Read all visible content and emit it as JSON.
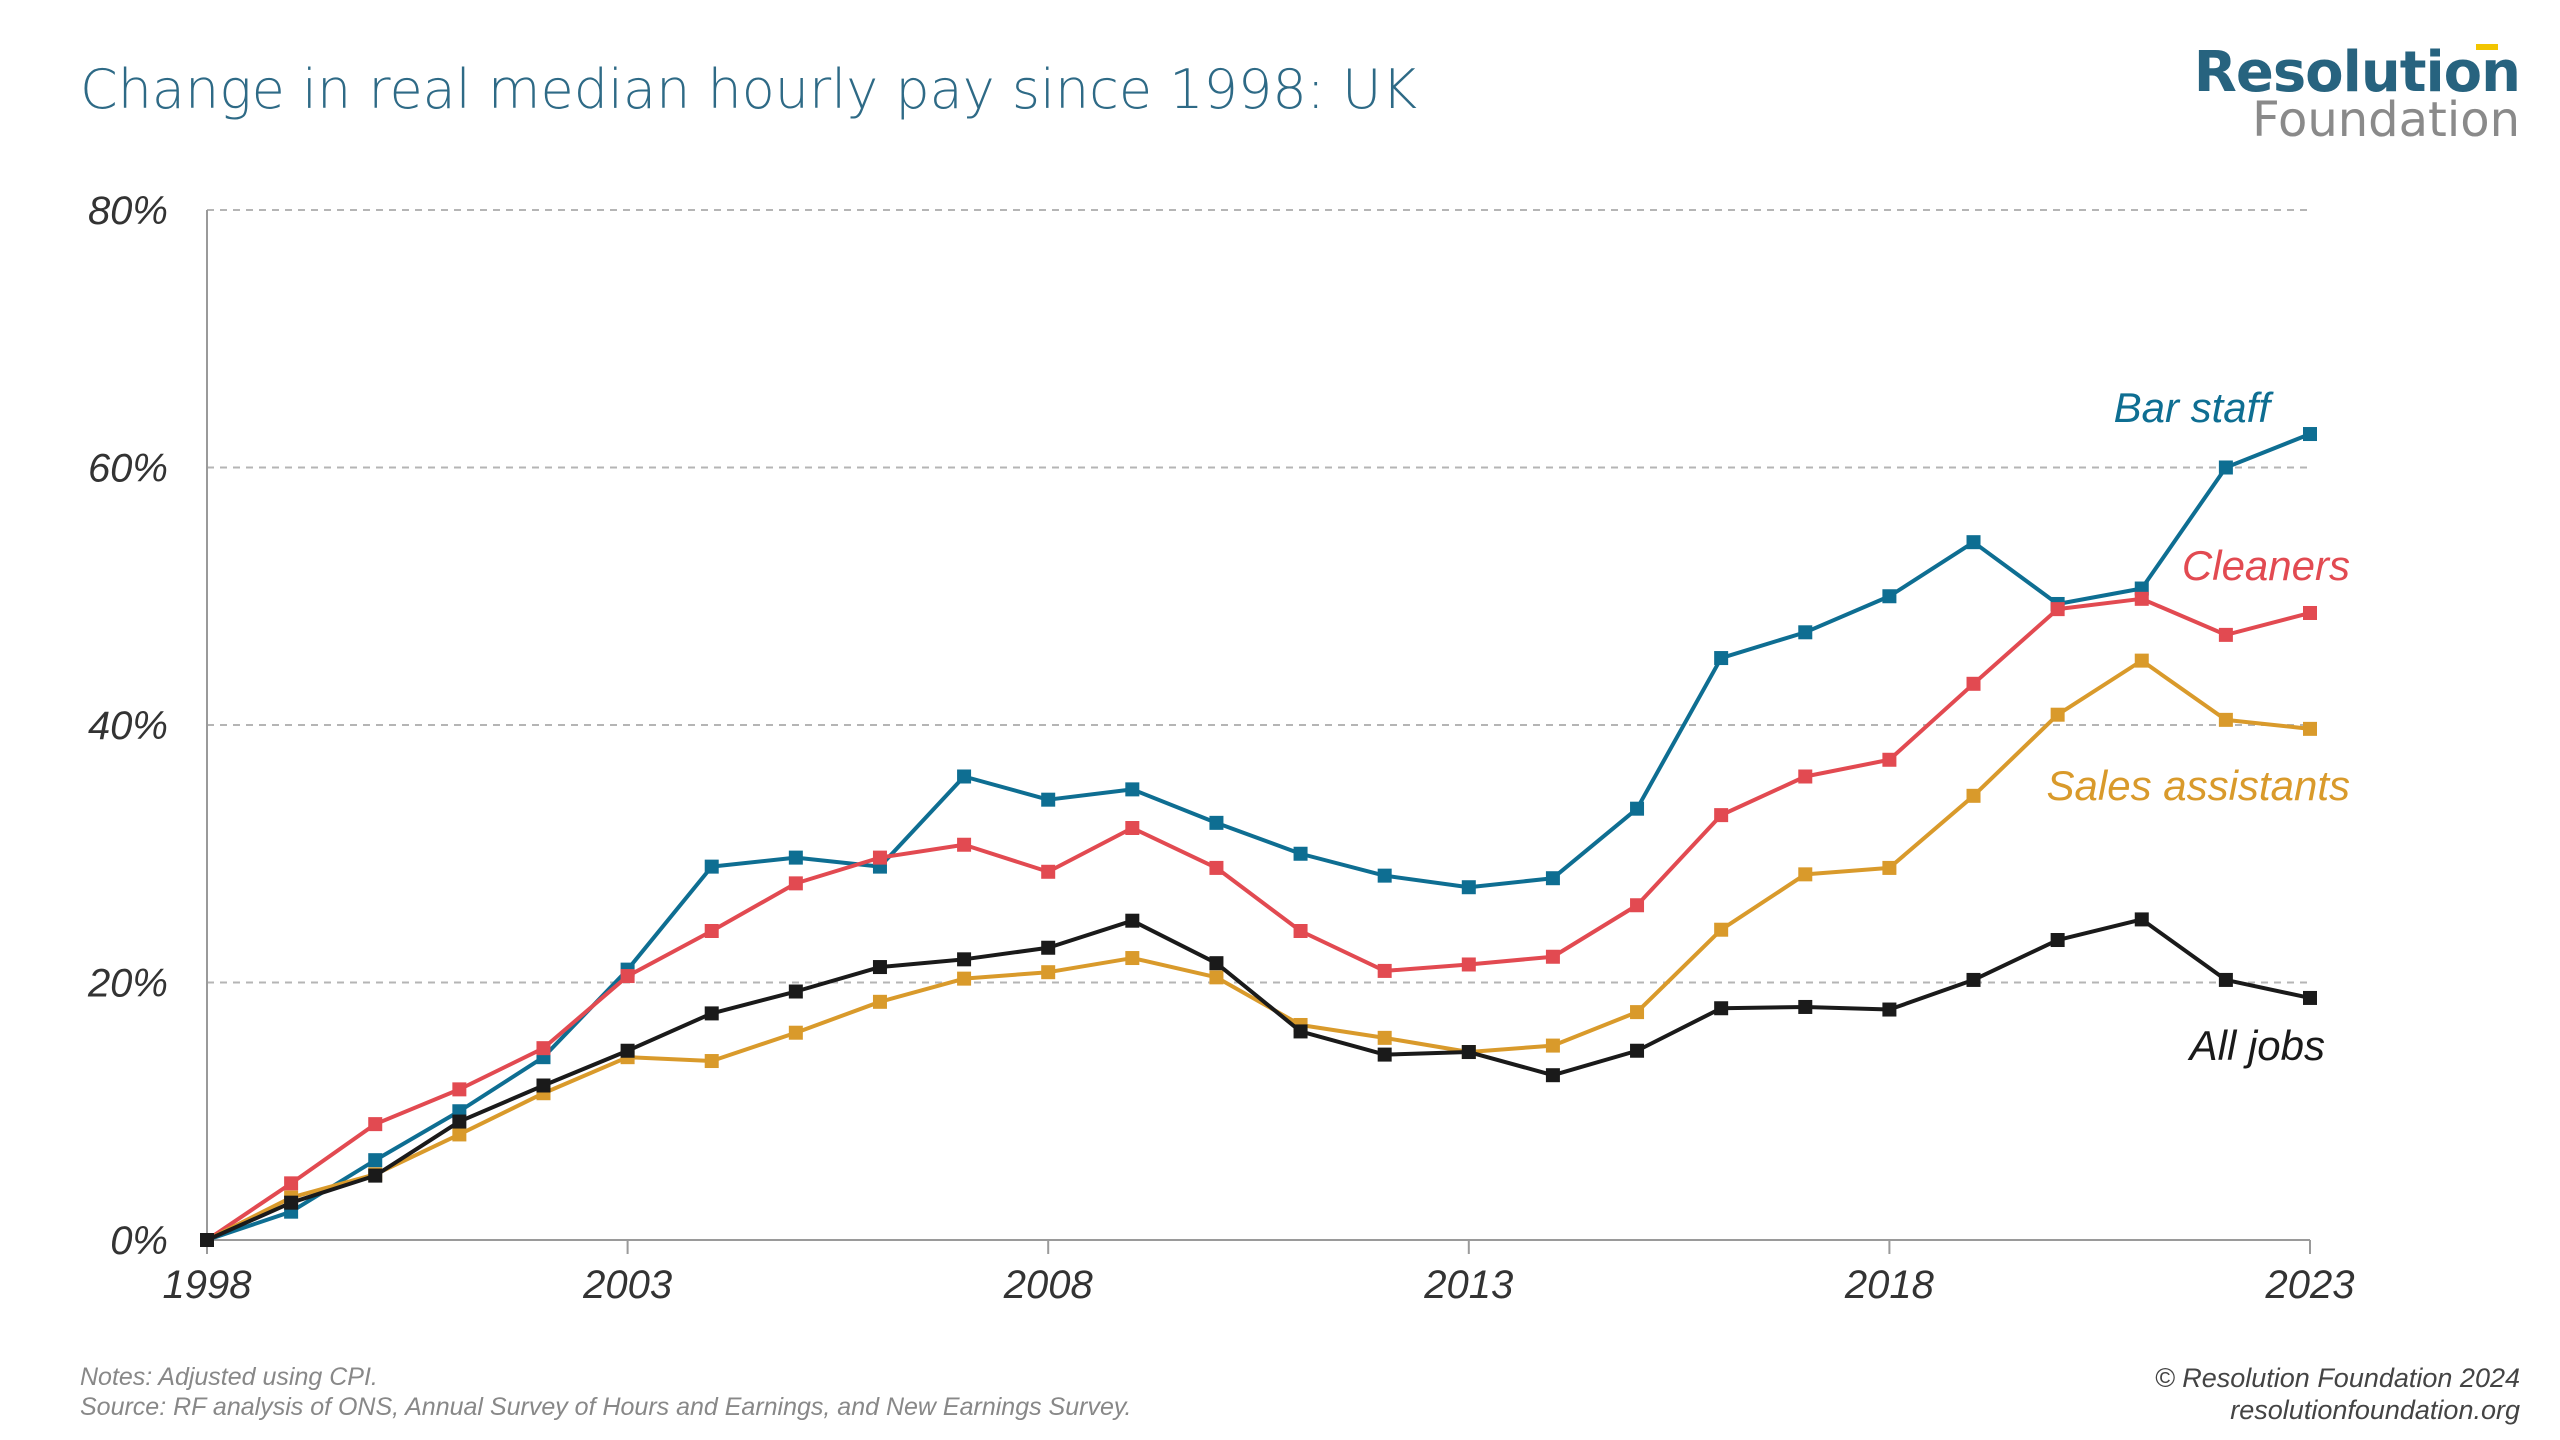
{
  "title": "Change in real median hourly pay since 1998: UK",
  "logo": {
    "line1": "Resolution",
    "line2": "Foundation"
  },
  "footer": {
    "notes": "Notes: Adjusted using CPI.",
    "source": "Source: RF analysis of ONS, Annual Survey of Hours and Earnings, and New Earnings Survey.",
    "copyright": "© Resolution Foundation 2024",
    "website": "resolutionfoundation.org"
  },
  "chart_data": {
    "type": "line",
    "title": "Change in real median hourly pay since 1998: UK",
    "xlabel": "",
    "ylabel": "",
    "ylim": [
      0,
      80
    ],
    "xlim": [
      1998,
      2023
    ],
    "yticks": [
      0,
      20,
      40,
      60,
      80
    ],
    "ytick_labels": [
      "0%",
      "20%",
      "40%",
      "60%",
      "80%"
    ],
    "xticks": [
      1998,
      2003,
      2008,
      2013,
      2018,
      2023
    ],
    "xtick_labels": [
      "1998",
      "2003",
      "2008",
      "2013",
      "2018",
      "2023"
    ],
    "grid": "horizontal dashed",
    "x": [
      1998,
      1999,
      2000,
      2001,
      2002,
      2003,
      2004,
      2005,
      2006,
      2007,
      2008,
      2009,
      2010,
      2011,
      2012,
      2013,
      2014,
      2015,
      2016,
      2017,
      2018,
      2019,
      2020,
      2021,
      2022,
      2023
    ],
    "series": [
      {
        "name": "Bar staff",
        "color": "#0e6e92",
        "values": [
          0,
          2.2,
          6.2,
          10,
          14.2,
          21,
          29,
          29.7,
          29,
          36,
          34.2,
          35,
          32.4,
          30,
          28.3,
          27.4,
          28.1,
          33.5,
          45.2,
          47.2,
          50,
          54.2,
          49.4,
          50.6,
          60,
          62.6
        ]
      },
      {
        "name": "Cleaners",
        "color": "#e24a51",
        "values": [
          0,
          4.4,
          9,
          11.7,
          14.9,
          20.5,
          24,
          27.7,
          29.7,
          30.7,
          28.6,
          32,
          28.9,
          24,
          20.9,
          21.4,
          22,
          26,
          33,
          36,
          37.3,
          43.2,
          49,
          49.8,
          47,
          48.7
        ]
      },
      {
        "name": "Sales assistants",
        "color": "#d99a2b",
        "values": [
          0,
          3.3,
          5.1,
          8.2,
          11.4,
          14.2,
          13.9,
          16.1,
          18.5,
          20.3,
          20.8,
          21.9,
          20.4,
          16.7,
          15.7,
          14.6,
          15.1,
          17.7,
          24.1,
          28.4,
          28.9,
          34.5,
          40.8,
          45,
          40.4,
          39.7
        ]
      },
      {
        "name": "All jobs",
        "color": "#1a1a1a",
        "values": [
          0,
          2.9,
          5,
          9.2,
          12,
          14.7,
          17.6,
          19.3,
          21.2,
          21.8,
          22.7,
          24.8,
          21.5,
          16.2,
          14.4,
          14.6,
          12.8,
          14.7,
          18,
          18.1,
          17.9,
          20.2,
          23.3,
          24.9,
          20.2,
          18.8
        ]
      }
    ],
    "annotations": [
      {
        "text": "Bar staff",
        "series": "Bar staff"
      },
      {
        "text": "Cleaners",
        "series": "Cleaners"
      },
      {
        "text": "Sales assistants",
        "series": "Sales assistants"
      },
      {
        "text": "All jobs",
        "series": "All jobs"
      }
    ]
  }
}
